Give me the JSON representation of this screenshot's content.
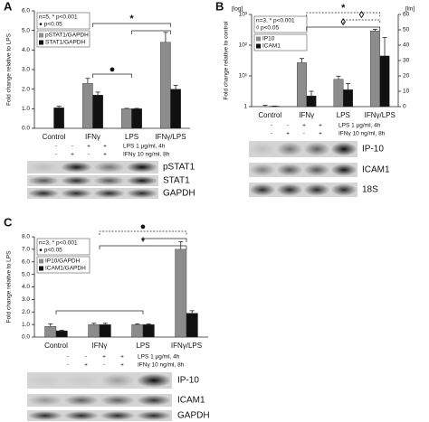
{
  "chart_data": [
    {
      "type": "bar",
      "y_label": "Fold change relative to LPS",
      "categories": [
        "Control",
        "IFNγ",
        "LPS",
        "IFNγ/LPS"
      ],
      "ylim": [
        0,
        6
      ],
      "yticks": [
        {
          "value": 0,
          "label": "0.0"
        },
        {
          "value": 1,
          "label": "1.0"
        },
        {
          "value": 2,
          "label": "2.0"
        },
        {
          "value": 3,
          "label": "3.0"
        },
        {
          "value": 4,
          "label": "4.0"
        },
        {
          "value": 5,
          "label": "5.0"
        },
        {
          "value": 6,
          "label": "6.0"
        }
      ],
      "series": [
        {
          "name": "pSTAT1/GAPDH",
          "color": "#8c8c8c",
          "values": [
            null,
            2.3,
            1.0,
            4.4
          ],
          "errors": [
            null,
            0.25,
            0.02,
            0.5
          ]
        },
        {
          "name": "STAT1/GAPDH",
          "color": "#111111",
          "values": [
            1.05,
            1.7,
            1.0,
            2.0
          ],
          "errors": [
            0.08,
            0.15,
            0.02,
            0.2
          ]
        }
      ],
      "annotations": [
        "n=5, * p<0.001",
        "● p<0.05"
      ],
      "sig_marks": [
        "*",
        "●"
      ]
    },
    {
      "type": "bar",
      "y_label": "Fold change relative to control",
      "categories": [
        "Control",
        "IFNγ",
        "LPS",
        "IFNγ/LPS"
      ],
      "ylog": true,
      "ylim": [
        1,
        1000
      ],
      "yticks": [
        {
          "value": 1,
          "label": "1"
        },
        {
          "value": 10,
          "label": "10¹"
        },
        {
          "value": 100,
          "label": "10²"
        },
        {
          "value": 1000,
          "label": "10³"
        }
      ],
      "y_scale_label": "[log]",
      "y2lim": [
        0,
        60
      ],
      "y2ticks": [
        0,
        10,
        20,
        30,
        40,
        50,
        60
      ],
      "y2_scale_label": "[lin]",
      "series": [
        {
          "name": "IP10",
          "color": "#8c8c8c",
          "values": [
            1,
            27,
            7.8,
            290
          ],
          "errors": [
            0.1,
            10,
            2,
            40
          ]
        },
        {
          "name": "ICAM1",
          "color": "#111111",
          "axis": "y2",
          "values": [
            0.3,
            7,
            11,
            33
          ],
          "errors": [
            0.1,
            3,
            4,
            12
          ]
        }
      ],
      "annotations": [
        "n=3, * p<0.001",
        "◊ p<0.05"
      ],
      "sig_marks": [
        "*",
        "◊",
        "◊"
      ]
    },
    {
      "type": "bar",
      "y_label": "Fold change relative to LPS",
      "categories": [
        "Control",
        "IFNγ",
        "LPS",
        "IFNγ/LPS"
      ],
      "ylim": [
        0,
        8
      ],
      "yticks": [
        {
          "value": 0,
          "label": "0.0"
        },
        {
          "value": 1,
          "label": "1.0"
        },
        {
          "value": 2,
          "label": "2.0"
        },
        {
          "value": 3,
          "label": "3.0"
        },
        {
          "value": 4,
          "label": "4.0"
        },
        {
          "value": 5,
          "label": "5.0"
        },
        {
          "value": 6,
          "label": "6.0"
        },
        {
          "value": 7,
          "label": "7.0"
        },
        {
          "value": 8,
          "label": "8.0"
        }
      ],
      "series": [
        {
          "name": "IP10/GAPDH",
          "color": "#8c8c8c",
          "values": [
            0.85,
            1.0,
            1.0,
            7.0
          ],
          "errors": [
            0.2,
            0.1,
            0.05,
            0.6
          ]
        },
        {
          "name": "ICAM1/GAPDH",
          "color": "#111111",
          "values": [
            0.5,
            1.0,
            1.0,
            1.9
          ],
          "errors": [
            0.05,
            0.1,
            0.05,
            0.2
          ]
        }
      ],
      "annotations": [
        "n=3, * p<0.001",
        "● p<0.05"
      ],
      "sig_marks": [
        "●",
        "*"
      ]
    }
  ],
  "panels": [
    {
      "label": "A",
      "treatments": [
        {
          "name": "LPS 1 μg/ml, 4h",
          "signs": [
            "-",
            "-",
            "+",
            "+"
          ]
        },
        {
          "name": "IFNγ 10 ng/ml, 8h",
          "signs": [
            "-",
            "+",
            "-",
            "+"
          ]
        }
      ],
      "blots": [
        "pSTAT1",
        "STAT1",
        "GAPDH"
      ]
    },
    {
      "label": "B",
      "treatments": [
        {
          "name": "LPS 1 μg/ml, 4h",
          "signs": [
            "-",
            "-",
            "+",
            "+"
          ]
        },
        {
          "name": "IFNγ 10 ng/ml, 8h",
          "signs": [
            "-",
            "+",
            "-",
            "+"
          ]
        }
      ],
      "blots": [
        "IP-10",
        "ICAM1",
        "18S"
      ]
    },
    {
      "label": "C",
      "treatments": [
        {
          "name": "LPS 1 μg/ml, 4h",
          "signs": [
            "-",
            "-",
            "+",
            "+"
          ]
        },
        {
          "name": "IFNγ 10 ng/ml, 8h",
          "signs": [
            "-",
            "+",
            "-",
            "+"
          ]
        }
      ],
      "blots": [
        "IP-10",
        "ICAM1",
        "GAPDH"
      ]
    }
  ]
}
